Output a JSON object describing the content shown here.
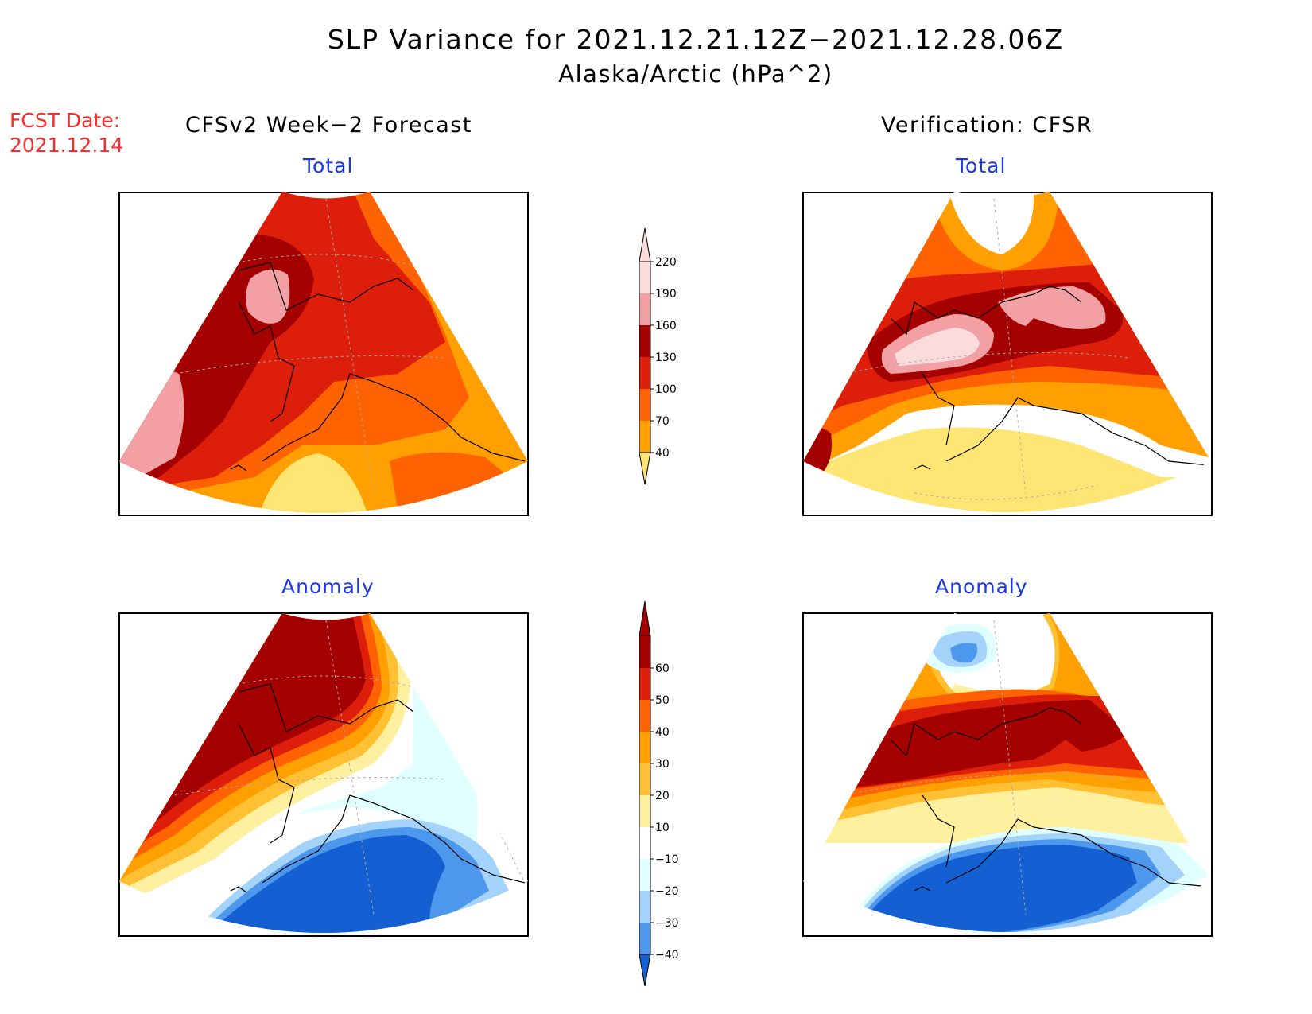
{
  "title": "SLP Variance for 2021.12.21.12Z−2021.12.28.06Z",
  "subtitle": "Alaska/Arctic (hPa^2)",
  "forecast_date": {
    "line1": "FCST Date:",
    "line2": "2021.12.14"
  },
  "columns": {
    "left": "CFSv2 Week−2 Forecast",
    "right": "Verification: CFSR"
  },
  "panels": {
    "top_left": "Total",
    "top_right": "Total",
    "bottom_left": "Anomaly",
    "bottom_right": "Anomaly"
  },
  "colorbar_total": {
    "labels": [
      "220",
      "190",
      "160",
      "130",
      "100",
      "70",
      "40"
    ],
    "colors": [
      "#fbdcdc",
      "#f2a0a3",
      "#a50000",
      "#dc1e0a",
      "#ff6200",
      "#ffa000",
      "#ffe573"
    ]
  },
  "colorbar_anomaly": {
    "labels": [
      "60",
      "50",
      "40",
      "30",
      "20",
      "10",
      "−10",
      "−20",
      "−30",
      "−40"
    ],
    "colors": [
      "#a50000",
      "#dc1e0a",
      "#ff6200",
      "#ffa000",
      "#ffc033",
      "#fff0a0",
      "#ffffff",
      "#e0ffff",
      "#a3d3fa",
      "#4d97ec",
      "#1460d2"
    ]
  },
  "map_colors": {
    "coastline": "#000000",
    "grid": "#aaaaaa"
  }
}
